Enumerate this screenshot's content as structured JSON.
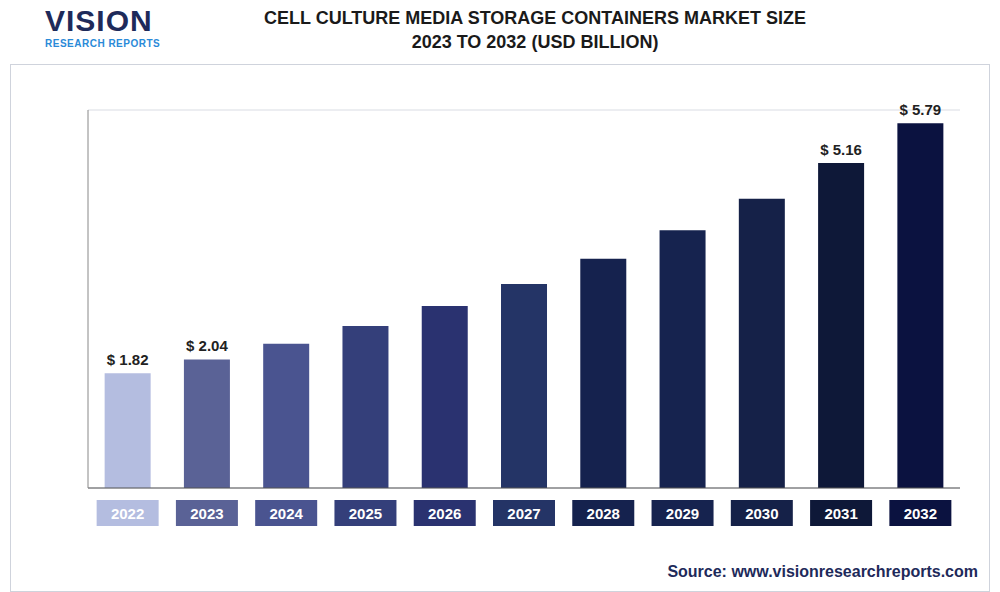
{
  "chart_data": {
    "type": "bar",
    "title": "CELL CULTURE MEDIA STORAGE CONTAINERS MARKET SIZE 2023 TO 2032 (USD BILLION)",
    "logo": "VISION",
    "logo_subtitle": "RESEARCH REPORTS",
    "source": "Source: www.visionresearchreports.com",
    "categories": [
      "2022",
      "2023",
      "2024",
      "2025",
      "2026",
      "2027",
      "2028",
      "2029",
      "2030",
      "2031",
      "2032"
    ],
    "values": [
      1.82,
      2.04,
      2.29,
      2.57,
      2.89,
      3.24,
      3.64,
      4.09,
      4.59,
      5.16,
      5.79
    ],
    "value_labels": [
      "$ 1.82",
      "$ 2.04",
      null,
      null,
      null,
      null,
      null,
      null,
      null,
      "$ 5.16",
      "$ 5.79"
    ],
    "data_labels": true,
    "colors": [
      "#b4bde0",
      "#5a6296",
      "#4a5490",
      "#343f7a",
      "#2a3270",
      "#243466",
      "#15224e",
      "#16234f",
      "#152148",
      "#0e1838",
      "#0b1240"
    ],
    "ylim": [
      0,
      6
    ],
    "yticks": [
      0,
      0.5,
      1,
      1.5,
      2,
      2.5,
      3,
      3.5,
      4,
      4.5,
      5,
      5.5,
      6
    ],
    "grid": true,
    "tick_labels": "x"
  }
}
